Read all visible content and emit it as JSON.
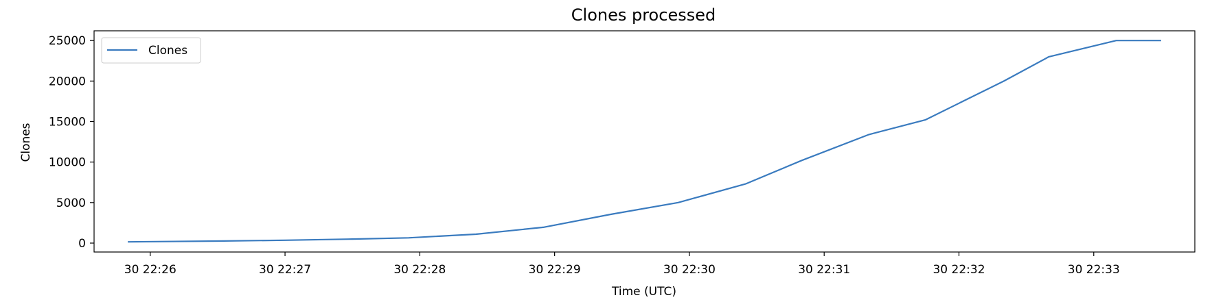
{
  "chart_data": {
    "type": "line",
    "title": "Clones processed",
    "xlabel": "Time (UTC)",
    "ylabel": "Clones",
    "legend": {
      "position": "top-left",
      "entries": [
        "Clones"
      ]
    },
    "grid": false,
    "x_ticks": [
      "30 22:26",
      "30 22:27",
      "30 22:28",
      "30 22:29",
      "30 22:30",
      "30 22:31",
      "30 22:32",
      "30 22:33"
    ],
    "y_ticks": [
      "0",
      "5000",
      "10000",
      "15000",
      "20000",
      "25000"
    ],
    "xlim": [
      "22:25:35",
      "22:33:45"
    ],
    "ylim": [
      -1100,
      26200
    ],
    "series": [
      {
        "name": "Clones",
        "color": "#3a7bbf",
        "x": [
          "22:25:50",
          "22:26:30",
          "22:27:00",
          "22:27:30",
          "22:27:55",
          "22:28:25",
          "22:28:55",
          "22:29:25",
          "22:29:55",
          "22:30:25",
          "22:30:50",
          "22:31:20",
          "22:31:45",
          "22:32:20",
          "22:32:40",
          "22:33:10",
          "22:33:30"
        ],
        "values": [
          150,
          250,
          350,
          500,
          650,
          1100,
          1950,
          3550,
          5000,
          7300,
          10200,
          13400,
          15200,
          20000,
          23000,
          25000,
          25000
        ]
      }
    ]
  }
}
